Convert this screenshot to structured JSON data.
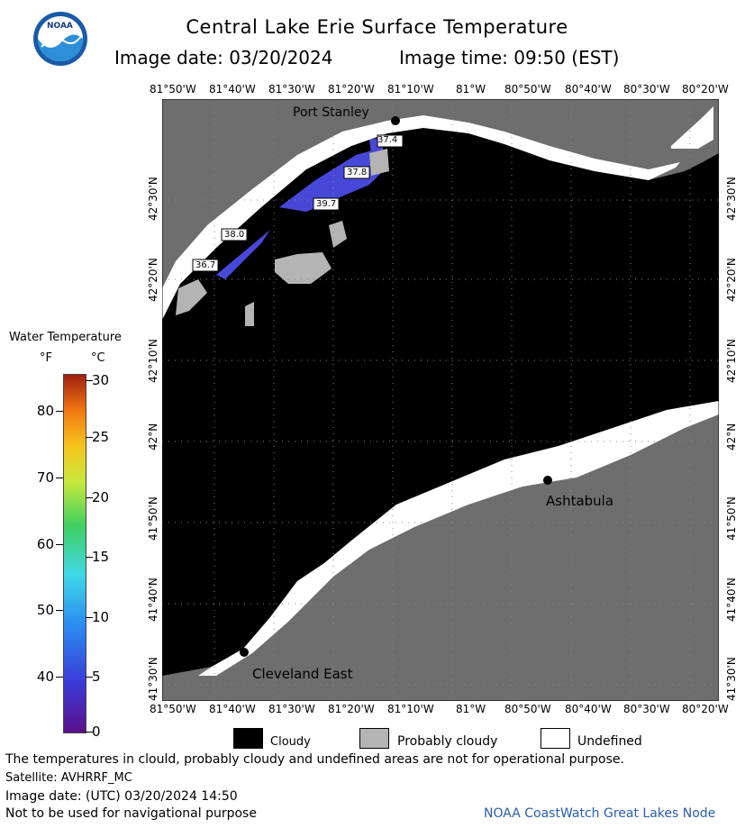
{
  "header": {
    "title": "Central Lake Erie Surface Temperature",
    "date_label": "Image date: 03/20/2024",
    "time_label": "Image time: 09:50 (EST)"
  },
  "logo": {
    "text": "NOAA",
    "icon": "noaa-logo"
  },
  "axes": {
    "lon_top": [
      "81°50'W",
      "81°40'W",
      "81°30'W",
      "81°20'W",
      "81°10'W",
      "81°W",
      "80°50'W",
      "80°40'W",
      "80°30'W",
      "80°20'W"
    ],
    "lon_bottom": [
      "81°50'W",
      "81°40'W",
      "81°30'W",
      "81°20'W",
      "81°10'W",
      "81°W",
      "80°50'W",
      "80°40'W",
      "80°30'W",
      "80°20'W"
    ],
    "lat_left": [
      "42°30'N",
      "42°20'N",
      "42°10'N",
      "42°N",
      "41°50'N",
      "41°40'N",
      "41°30'N"
    ],
    "lat_right": [
      "42°30'N",
      "42°20'N",
      "42°10'N",
      "42°N",
      "41°50'N",
      "41°40'N",
      "41°30'N"
    ]
  },
  "places": {
    "port_stanley": "Port Stanley",
    "ashtabula": "Ashtabula",
    "cleveland_east": "Cleveland East"
  },
  "temp_labels": [
    "37.4",
    "37.8",
    "39.7",
    "38.0",
    "36.7"
  ],
  "scale": {
    "title": "Water Temperature",
    "unit_f": "°F",
    "unit_c": "°C",
    "f_ticks": [
      "80",
      "70",
      "60",
      "50",
      "40"
    ],
    "c_ticks": [
      "30",
      "25",
      "20",
      "15",
      "10",
      "5",
      "0"
    ]
  },
  "legend": {
    "cloudy": "Cloudy",
    "probably_cloudy": "Probably cloudy",
    "undefined": "Undefined"
  },
  "footer": {
    "note": "The temperatures in clould, probably cloudy and undefined areas are not for operational purpose.",
    "satellite": "Satellite: AVHRRF_MC",
    "utc": "Image date: (UTC) 03/20/2024  14:50",
    "nav": "Not to be used for navigational purpose",
    "credit": "NOAA CoastWatch Great Lakes Node"
  },
  "colors": {
    "land": "#6e6e6e",
    "cloud": "#000000",
    "probably_cloudy": "#b4b4b4",
    "undefined": "#ffffff",
    "water_cold": "#4848d8",
    "credit": "#2a5db0"
  }
}
